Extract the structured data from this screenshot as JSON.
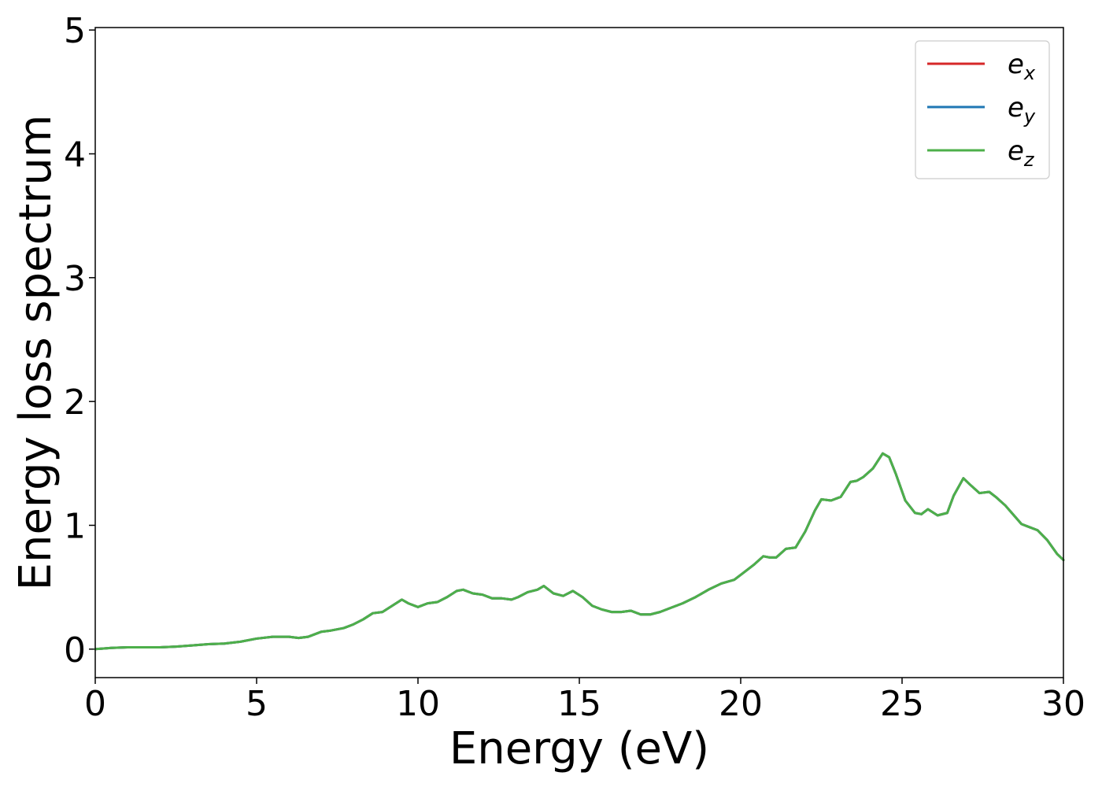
{
  "chart_data": {
    "type": "line",
    "title": "",
    "xlabel": "Energy (eV)",
    "ylabel": "Energy loss spectrum",
    "xlim": [
      0,
      30
    ],
    "ylim": [
      -0.23,
      5.02
    ],
    "xticks": [
      0,
      5,
      10,
      15,
      20,
      25,
      30
    ],
    "yticks": [
      0,
      1,
      2,
      3,
      4,
      5
    ],
    "xtick_labels": [
      "0",
      "5",
      "10",
      "15",
      "20",
      "25",
      "30"
    ],
    "ytick_labels": [
      "0",
      "1",
      "2",
      "3",
      "4",
      "5"
    ],
    "grid": false,
    "legend_position": "top-right",
    "x": [
      0,
      0.5,
      1,
      1.5,
      2,
      2.5,
      3,
      3.5,
      4,
      4.5,
      5,
      5.5,
      6,
      6.3,
      6.6,
      7,
      7.3,
      7.7,
      8,
      8.3,
      8.6,
      8.9,
      9.2,
      9.5,
      9.7,
      10,
      10.3,
      10.6,
      10.9,
      11.2,
      11.4,
      11.7,
      12,
      12.3,
      12.6,
      12.9,
      13.1,
      13.4,
      13.7,
      13.9,
      14.2,
      14.5,
      14.8,
      15.1,
      15.4,
      15.7,
      16,
      16.3,
      16.6,
      16.9,
      17.2,
      17.5,
      17.8,
      18.2,
      18.6,
      19,
      19.4,
      19.8,
      20.1,
      20.4,
      20.7,
      20.9,
      21.1,
      21.4,
      21.7,
      22,
      22.3,
      22.5,
      22.8,
      23.1,
      23.4,
      23.6,
      23.8,
      24.1,
      24.4,
      24.6,
      24.8,
      25.1,
      25.4,
      25.6,
      25.8,
      26.1,
      26.4,
      26.6,
      26.9,
      27.1,
      27.4,
      27.7,
      27.9,
      28.2,
      28.4,
      28.7,
      28.9,
      29.2,
      29.5,
      29.8,
      30
    ],
    "series": [
      {
        "name": "e_x",
        "color": "#d62728",
        "values": [
          0.0,
          0.01,
          0.015,
          0.015,
          0.015,
          0.02,
          0.03,
          0.04,
          0.045,
          0.06,
          0.085,
          0.1,
          0.1,
          0.09,
          0.1,
          0.14,
          0.15,
          0.17,
          0.2,
          0.24,
          0.29,
          0.3,
          0.35,
          0.4,
          0.37,
          0.34,
          0.37,
          0.38,
          0.42,
          0.47,
          0.48,
          0.45,
          0.44,
          0.41,
          0.41,
          0.4,
          0.42,
          0.46,
          0.48,
          0.51,
          0.45,
          0.43,
          0.47,
          0.42,
          0.35,
          0.32,
          0.3,
          0.3,
          0.31,
          0.28,
          0.28,
          0.3,
          0.33,
          0.37,
          0.42,
          0.48,
          0.53,
          0.56,
          0.62,
          0.68,
          0.75,
          0.74,
          0.74,
          0.81,
          0.82,
          0.95,
          1.12,
          1.21,
          1.2,
          1.23,
          1.35,
          1.36,
          1.39,
          1.46,
          1.58,
          1.55,
          1.42,
          1.2,
          1.1,
          1.09,
          1.13,
          1.08,
          1.1,
          1.24,
          1.38,
          1.33,
          1.26,
          1.27,
          1.23,
          1.16,
          1.1,
          1.01,
          0.99,
          0.96,
          0.88,
          0.77,
          0.72
        ]
      },
      {
        "name": "e_y",
        "color": "#1f77b4",
        "values": [
          0.0,
          0.01,
          0.015,
          0.015,
          0.015,
          0.02,
          0.03,
          0.04,
          0.045,
          0.06,
          0.085,
          0.1,
          0.1,
          0.09,
          0.1,
          0.14,
          0.15,
          0.17,
          0.2,
          0.24,
          0.29,
          0.3,
          0.35,
          0.4,
          0.37,
          0.34,
          0.37,
          0.38,
          0.42,
          0.47,
          0.48,
          0.45,
          0.44,
          0.41,
          0.41,
          0.4,
          0.42,
          0.46,
          0.48,
          0.51,
          0.45,
          0.43,
          0.47,
          0.42,
          0.35,
          0.32,
          0.3,
          0.3,
          0.31,
          0.28,
          0.28,
          0.3,
          0.33,
          0.37,
          0.42,
          0.48,
          0.53,
          0.56,
          0.62,
          0.68,
          0.75,
          0.74,
          0.74,
          0.81,
          0.82,
          0.95,
          1.12,
          1.21,
          1.2,
          1.23,
          1.35,
          1.36,
          1.39,
          1.46,
          1.58,
          1.55,
          1.42,
          1.2,
          1.1,
          1.09,
          1.13,
          1.08,
          1.1,
          1.24,
          1.38,
          1.33,
          1.26,
          1.27,
          1.23,
          1.16,
          1.1,
          1.01,
          0.99,
          0.96,
          0.88,
          0.77,
          0.72
        ]
      },
      {
        "name": "e_z",
        "color": "#4daf4a",
        "values": [
          0.0,
          0.01,
          0.015,
          0.015,
          0.015,
          0.02,
          0.03,
          0.04,
          0.045,
          0.06,
          0.085,
          0.1,
          0.1,
          0.09,
          0.1,
          0.14,
          0.15,
          0.17,
          0.2,
          0.24,
          0.29,
          0.3,
          0.35,
          0.4,
          0.37,
          0.34,
          0.37,
          0.38,
          0.42,
          0.47,
          0.48,
          0.45,
          0.44,
          0.41,
          0.41,
          0.4,
          0.42,
          0.46,
          0.48,
          0.51,
          0.45,
          0.43,
          0.47,
          0.42,
          0.35,
          0.32,
          0.3,
          0.3,
          0.31,
          0.28,
          0.28,
          0.3,
          0.33,
          0.37,
          0.42,
          0.48,
          0.53,
          0.56,
          0.62,
          0.68,
          0.75,
          0.74,
          0.74,
          0.81,
          0.82,
          0.95,
          1.12,
          1.21,
          1.2,
          1.23,
          1.35,
          1.36,
          1.39,
          1.46,
          1.58,
          1.55,
          1.42,
          1.2,
          1.1,
          1.09,
          1.13,
          1.08,
          1.1,
          1.24,
          1.38,
          1.33,
          1.26,
          1.27,
          1.23,
          1.16,
          1.1,
          1.01,
          0.99,
          0.96,
          0.88,
          0.77,
          0.72
        ]
      }
    ],
    "legend": [
      {
        "base": "e",
        "sub": "x",
        "color": "#d62728"
      },
      {
        "base": "e",
        "sub": "y",
        "color": "#1f77b4"
      },
      {
        "base": "e",
        "sub": "z",
        "color": "#4daf4a"
      }
    ]
  }
}
